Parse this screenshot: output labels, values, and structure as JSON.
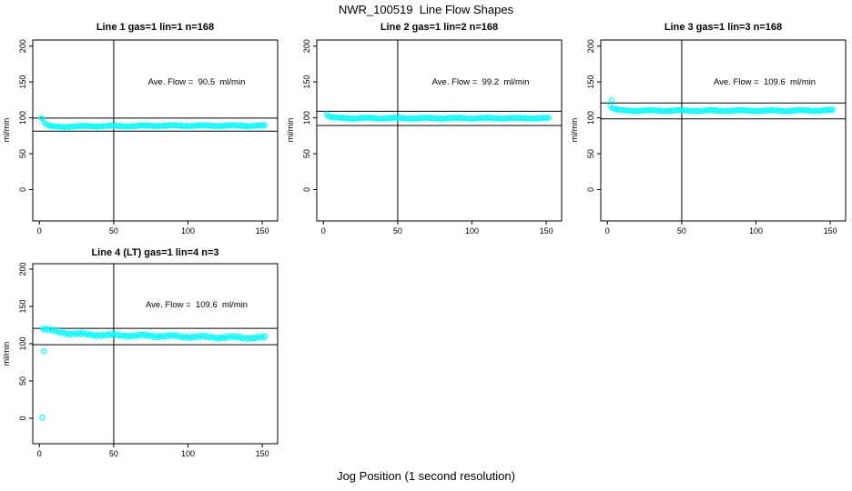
{
  "figure": {
    "title": "NWR_100519  Line Flow Shapes",
    "xlabel": "Jog Position (1 second resolution)",
    "background": "#ffffff",
    "axis_color": "#000000",
    "point_color": "#00ffff"
  },
  "chart_data": [
    {
      "type": "scatter",
      "title": "Line 1 gas=1 lin=1 n=168",
      "annotation": "Ave. Flow =  90.5  ml/min",
      "ave_flow_ml_min": 90.5,
      "n_points": 168,
      "ylabel": "ml/min",
      "xticks": [
        0,
        50,
        100,
        150
      ],
      "yticks": [
        0,
        50,
        100,
        150,
        200
      ],
      "xlim": [
        -5,
        160
      ],
      "ylim": [
        -44,
        209
      ],
      "vline_x": 50,
      "hlines_y": [
        81.5,
        99.6
      ],
      "grid": false,
      "marker": "open-circle",
      "band_points": [
        [
          1,
          101
        ],
        [
          2,
          98.5
        ],
        [
          3,
          95
        ],
        [
          4,
          92
        ],
        [
          6,
          89
        ],
        [
          9,
          87.5
        ],
        [
          14,
          87.5
        ],
        [
          25,
          88
        ],
        [
          40,
          88.5
        ],
        [
          60,
          88.5
        ],
        [
          80,
          89
        ],
        [
          100,
          89
        ],
        [
          125,
          89
        ],
        [
          152,
          89
        ]
      ],
      "outliers": [],
      "noise": 0.9
    },
    {
      "type": "scatter",
      "title": "Line 2 gas=1 lin=2 n=168",
      "annotation": "Ave. Flow =  99.2  ml/min",
      "ave_flow_ml_min": 99.2,
      "n_points": 168,
      "ylabel": "ml/min",
      "xticks": [
        0,
        50,
        100,
        150
      ],
      "yticks": [
        0,
        50,
        100,
        150,
        200
      ],
      "xlim": [
        -5,
        160
      ],
      "ylim": [
        -44,
        209
      ],
      "vline_x": 50,
      "hlines_y": [
        89.3,
        109.1
      ],
      "grid": false,
      "marker": "open-circle",
      "band_points": [
        [
          2,
          105
        ],
        [
          3,
          103
        ],
        [
          4,
          101.5
        ],
        [
          6,
          100.5
        ],
        [
          10,
          100
        ],
        [
          20,
          99.5
        ],
        [
          50,
          99.5
        ],
        [
          90,
          99.5
        ],
        [
          120,
          99.5
        ],
        [
          152,
          99.5
        ]
      ],
      "outliers": [],
      "noise": 0.9
    },
    {
      "type": "scatter",
      "title": "Line 3 gas=1 lin=3 n=168",
      "annotation": "Ave. Flow =  109.6  ml/min",
      "ave_flow_ml_min": 109.6,
      "n_points": 168,
      "ylabel": "ml/min",
      "xticks": [
        0,
        50,
        100,
        150
      ],
      "yticks": [
        0,
        50,
        100,
        150,
        200
      ],
      "xlim": [
        -5,
        160
      ],
      "ylim": [
        -44,
        209
      ],
      "vline_x": 50,
      "hlines_y": [
        98.6,
        120.6
      ],
      "grid": false,
      "marker": "open-circle",
      "band_points": [
        [
          2,
          116
        ],
        [
          3,
          114
        ],
        [
          5,
          112
        ],
        [
          8,
          110.5
        ],
        [
          15,
          110
        ],
        [
          40,
          110
        ],
        [
          80,
          110
        ],
        [
          120,
          110
        ],
        [
          152,
          110.5
        ]
      ],
      "outliers": [
        [
          3,
          125
        ]
      ],
      "noise": 1.0
    },
    {
      "type": "scatter",
      "title": "Line 4 (LT) gas=1 lin=4 n=3",
      "annotation": "Ave. Flow =  109.6  ml/min",
      "ave_flow_ml_min": 109.6,
      "n_points": 3,
      "ylabel": "ml/min",
      "xticks": [
        0,
        50,
        100,
        150
      ],
      "yticks": [
        0,
        50,
        100,
        150,
        200
      ],
      "xlim": [
        -5,
        160
      ],
      "ylim": [
        -35,
        208
      ],
      "vline_x": 50,
      "hlines_y": [
        98.6,
        120.6
      ],
      "grid": false,
      "marker": "open-circle",
      "band_points": [
        [
          2,
          120
        ],
        [
          4,
          119.5
        ],
        [
          7,
          118
        ],
        [
          12,
          116
        ],
        [
          20,
          114
        ],
        [
          30,
          112.5
        ],
        [
          45,
          111.5
        ],
        [
          60,
          111
        ],
        [
          80,
          110.5
        ],
        [
          100,
          109.5
        ],
        [
          125,
          108.5
        ],
        [
          152,
          108
        ]
      ],
      "outliers": [
        [
          3,
          90
        ],
        [
          2,
          1
        ]
      ],
      "noise": 1.6
    }
  ]
}
